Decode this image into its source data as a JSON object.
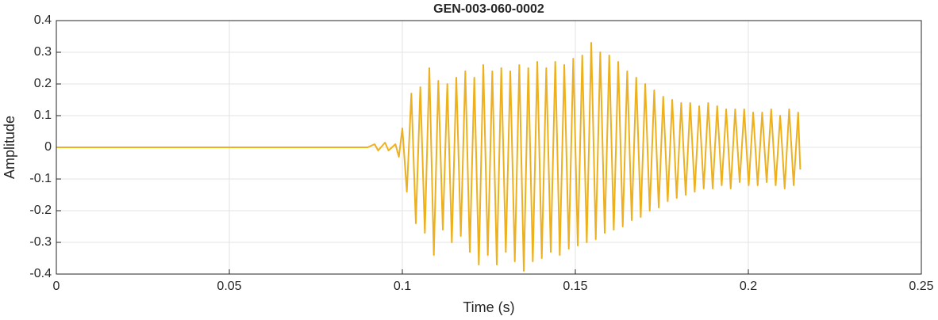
{
  "chart_data": {
    "type": "line",
    "title": "GEN-003-060-0002",
    "x_label": "Time (s)",
    "y_label": "Amplitude",
    "xlim": [
      0,
      0.25
    ],
    "xticks": [
      0,
      0.05,
      0.1,
      0.15,
      0.2,
      0.25
    ],
    "ylim": [
      -0.4,
      0.4
    ],
    "yticks": [
      -0.4,
      -0.3,
      -0.2,
      -0.1,
      0,
      0.1,
      0.2,
      0.3,
      0.4
    ],
    "grid": true,
    "series": [
      {
        "color": "#edb120",
        "x": [
          0,
          0.09,
          0.092,
          0.093,
          0.095,
          0.096,
          0.098,
          0.099,
          0.1,
          0.1013,
          0.1026,
          0.1039,
          0.1052,
          0.1065,
          0.1078,
          0.1091,
          0.1104,
          0.1117,
          0.113,
          0.1143,
          0.1156,
          0.1169,
          0.1182,
          0.1195,
          0.1208,
          0.1221,
          0.1234,
          0.1247,
          0.126,
          0.1273,
          0.1286,
          0.1299,
          0.1312,
          0.1325,
          0.1338,
          0.1351,
          0.1364,
          0.1377,
          0.139,
          0.1403,
          0.1416,
          0.1429,
          0.1442,
          0.1455,
          0.1468,
          0.1481,
          0.1494,
          0.1507,
          0.152,
          0.1533,
          0.1546,
          0.1559,
          0.1572,
          0.1585,
          0.1598,
          0.1611,
          0.1624,
          0.1637,
          0.165,
          0.1663,
          0.1676,
          0.1689,
          0.1702,
          0.1715,
          0.1728,
          0.1741,
          0.1754,
          0.1767,
          0.178,
          0.1793,
          0.1806,
          0.1819,
          0.1832,
          0.1845,
          0.1858,
          0.1871,
          0.1884,
          0.1897,
          0.191,
          0.1923,
          0.1936,
          0.1949,
          0.1962,
          0.1975,
          0.1988,
          0.2001,
          0.2014,
          0.2027,
          0.204,
          0.2053,
          0.2066,
          0.2079,
          0.2092,
          0.2105,
          0.2118,
          0.2131,
          0.2144,
          0.215
        ],
        "values": [
          0,
          0,
          0.01,
          -0.01,
          0.015,
          -0.01,
          0.01,
          -0.03,
          0.06,
          -0.14,
          0.17,
          -0.24,
          0.19,
          -0.27,
          0.25,
          -0.34,
          0.21,
          -0.26,
          0.2,
          -0.3,
          0.22,
          -0.28,
          0.24,
          -0.33,
          0.22,
          -0.37,
          0.26,
          -0.34,
          0.24,
          -0.37,
          0.25,
          -0.33,
          0.24,
          -0.36,
          0.26,
          -0.39,
          0.25,
          -0.36,
          0.27,
          -0.35,
          0.25,
          -0.33,
          0.27,
          -0.34,
          0.26,
          -0.32,
          0.28,
          -0.31,
          0.29,
          -0.3,
          0.33,
          -0.29,
          0.3,
          -0.27,
          0.29,
          -0.26,
          0.27,
          -0.25,
          0.24,
          -0.23,
          0.22,
          -0.22,
          0.2,
          -0.2,
          0.18,
          -0.19,
          0.16,
          -0.17,
          0.15,
          -0.16,
          0.14,
          -0.15,
          0.14,
          -0.14,
          0.13,
          -0.13,
          0.14,
          -0.13,
          0.13,
          -0.12,
          0.12,
          -0.13,
          0.12,
          -0.11,
          0.12,
          -0.12,
          0.11,
          -0.12,
          0.11,
          -0.11,
          0.12,
          -0.12,
          0.1,
          -0.13,
          0.12,
          -0.12,
          0.11,
          -0.07
        ]
      }
    ]
  }
}
